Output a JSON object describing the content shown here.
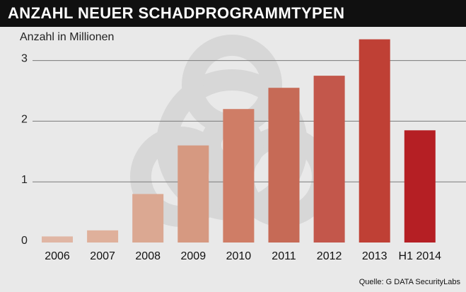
{
  "chart_data": {
    "type": "bar",
    "title": "ANZAHL NEUER SCHADPROGRAMMTYPEN",
    "ylabel": "Anzahl in Millionen",
    "xlabel": "",
    "categories": [
      "2006",
      "2007",
      "2008",
      "2009",
      "2010",
      "2011",
      "2012",
      "2013",
      "H1 2014"
    ],
    "values": [
      0.1,
      0.2,
      0.8,
      1.6,
      2.2,
      2.55,
      2.75,
      3.35,
      1.85
    ],
    "bar_colors": [
      "#e0b6a4",
      "#dfb09b",
      "#dba892",
      "#d69981",
      "#cf7d66",
      "#c66a56",
      "#c3574b",
      "#bf4035",
      "#b51f24"
    ],
    "yticks": [
      0,
      1,
      2,
      3
    ],
    "ylim": [
      0,
      3.45
    ],
    "grid": "horizontal",
    "watermark": "biohazard-symbol",
    "source": "Quelle: G DATA SecurityLabs"
  }
}
